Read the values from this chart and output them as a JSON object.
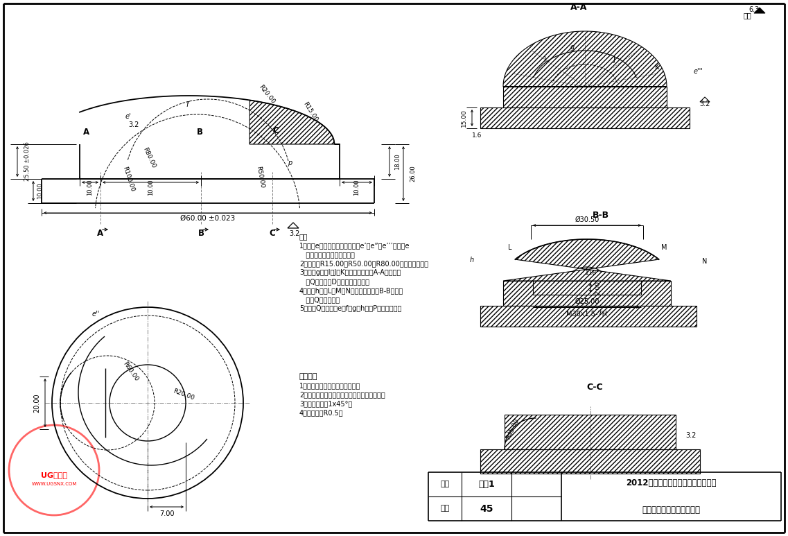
{
  "bg_color": "#ffffff",
  "note_lines": [
    "注：",
    "1、曲线e是一条空间曲线；曲线e’、e”、e’’’是曲线e",
    "   在对应三个视图上的投影；",
    "2、曲线由R15.00、R50.00和R80.00三段圆弧构成；",
    "3、曲线g为过I、J、K三点的圆弧，为A-A截面取曲",
    "   面Q（被平面D截切）的轮廓线；",
    "4、曲线h为过L、M、N三点的圆弧，为B-B截面取",
    "   曲面Q的轮廓线；",
    "5、曲面Q为过曲线e、f、g、h及点P的光滑曲面。"
  ],
  "tech_lines": [
    "技术要求",
    "1、零件表面无任何划伤、毛刺；",
    "2、曲面表面必须光滑连续，不允许出现折痕；",
    "3、未注倒角为1x45°；",
    "4、未注圆角R0.5。"
  ],
  "title_line1": "2012山东省职业院校技能大赛高词组",
  "title_line2": "机械产品数控加工项目样题",
  "part_name": "零件1",
  "material": "45",
  "label_name": "名称",
  "label_material": "材料",
  "roughness_other": "其余"
}
